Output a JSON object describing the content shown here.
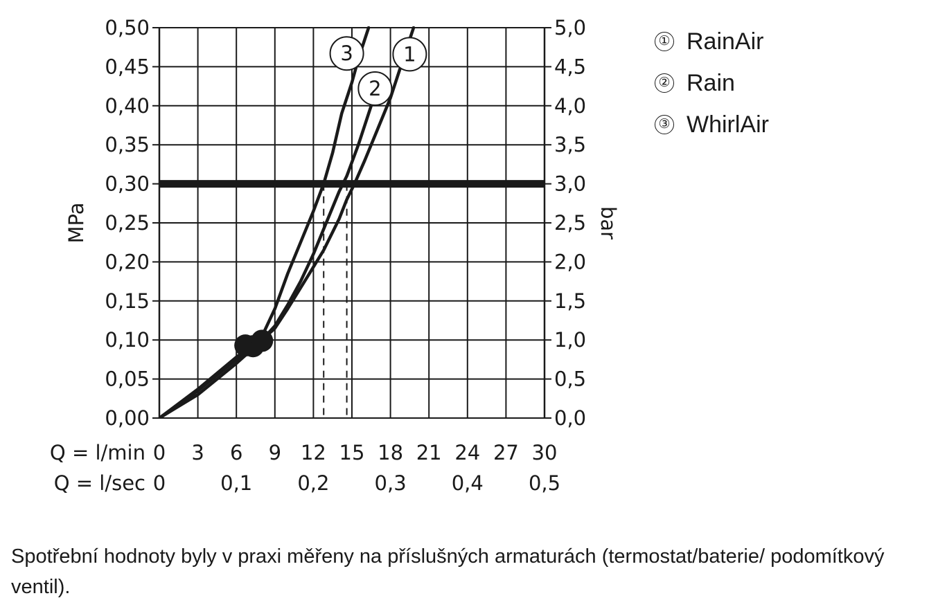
{
  "chart_data": {
    "type": "line",
    "y_left": {
      "label": "MPa",
      "ticks": [
        "0,00",
        "0,05",
        "0,10",
        "0,15",
        "0,20",
        "0,25",
        "0,30",
        "0,35",
        "0,40",
        "0,45",
        "0,50"
      ],
      "range": [
        0,
        0.5
      ]
    },
    "y_right": {
      "label": "bar",
      "ticks": [
        "0,0",
        "0,5",
        "1,0",
        "1,5",
        "2,0",
        "2,5",
        "3,0",
        "3,5",
        "4,0",
        "4,5",
        "5,0"
      ],
      "range": [
        0,
        5
      ]
    },
    "x_rows": [
      {
        "label": "Q = l/min",
        "ticks": [
          {
            "v": 0,
            "t": "0"
          },
          {
            "v": 3,
            "t": "3"
          },
          {
            "v": 6,
            "t": "6"
          },
          {
            "v": 9,
            "t": "9"
          },
          {
            "v": 12,
            "t": "12"
          },
          {
            "v": 15,
            "t": "15"
          },
          {
            "v": 18,
            "t": "18"
          },
          {
            "v": 21,
            "t": "21"
          },
          {
            "v": 24,
            "t": "24"
          },
          {
            "v": 27,
            "t": "27"
          },
          {
            "v": 30,
            "t": "30"
          }
        ]
      },
      {
        "label": "Q = l/sec",
        "ticks": [
          {
            "v": 0,
            "t": "0"
          },
          {
            "v": 6,
            "t": "0,1"
          },
          {
            "v": 12,
            "t": "0,2"
          },
          {
            "v": 18,
            "t": "0,3"
          },
          {
            "v": 24,
            "t": "0,4"
          },
          {
            "v": 30,
            "t": "0,5"
          }
        ]
      }
    ],
    "x_range": [
      0,
      30
    ],
    "grid": true,
    "reference_line": {
      "y": 0.3
    },
    "dashed_verticals": [
      12.8,
      14.6
    ],
    "series": [
      {
        "name": "RainAir",
        "marker": "1",
        "points": [
          [
            0,
            0
          ],
          [
            3,
            0.035
          ],
          [
            6,
            0.075
          ],
          [
            7.2,
            0.09
          ],
          [
            8,
            0.1
          ],
          [
            9,
            0.115
          ],
          [
            10,
            0.14
          ],
          [
            11.5,
            0.18
          ],
          [
            12.8,
            0.215
          ],
          [
            14,
            0.255
          ],
          [
            14.6,
            0.28
          ],
          [
            15.2,
            0.3
          ],
          [
            16,
            0.33
          ],
          [
            17,
            0.37
          ],
          [
            18,
            0.41
          ],
          [
            19,
            0.46
          ],
          [
            19.8,
            0.5
          ]
        ]
      },
      {
        "name": "Rain",
        "marker": "2",
        "points": [
          [
            0,
            0
          ],
          [
            3,
            0.03
          ],
          [
            6,
            0.07
          ],
          [
            7.5,
            0.092
          ],
          [
            8,
            0.1
          ],
          [
            9,
            0.118
          ],
          [
            10,
            0.145
          ],
          [
            11,
            0.175
          ],
          [
            12,
            0.21
          ],
          [
            13,
            0.25
          ],
          [
            14,
            0.29
          ],
          [
            14.6,
            0.31
          ],
          [
            15.5,
            0.35
          ],
          [
            16.5,
            0.4
          ],
          [
            17.3,
            0.44
          ]
        ]
      },
      {
        "name": "WhirlAir",
        "marker": "3",
        "points": [
          [
            0,
            0
          ],
          [
            3,
            0.037
          ],
          [
            6,
            0.078
          ],
          [
            7,
            0.09
          ],
          [
            8,
            0.105
          ],
          [
            9,
            0.14
          ],
          [
            10,
            0.185
          ],
          [
            11,
            0.225
          ],
          [
            12,
            0.265
          ],
          [
            12.8,
            0.3
          ],
          [
            13.5,
            0.34
          ],
          [
            14.2,
            0.39
          ],
          [
            15,
            0.43
          ],
          [
            15.5,
            0.46
          ],
          [
            16.3,
            0.5
          ]
        ]
      }
    ],
    "operating_points": [
      {
        "x": 6.7,
        "y": 0.093
      },
      {
        "x": 7.3,
        "y": 0.092
      },
      {
        "x": 8,
        "y": 0.099
      }
    ],
    "curve_labels": [
      {
        "marker": "3",
        "x": 14.6,
        "y": 0.467
      },
      {
        "marker": "1",
        "x": 19.5,
        "y": 0.466
      },
      {
        "marker": "2",
        "x": 16.8,
        "y": 0.422
      }
    ]
  },
  "legend": [
    {
      "marker": "①",
      "label": "RainAir"
    },
    {
      "marker": "②",
      "label": "Rain"
    },
    {
      "marker": "③",
      "label": "WhirlAir"
    }
  ],
  "note": "Spotřební hodnoty byly v praxi měřeny na příslušných armaturách (termostat/baterie/ podomítkový ventil)."
}
